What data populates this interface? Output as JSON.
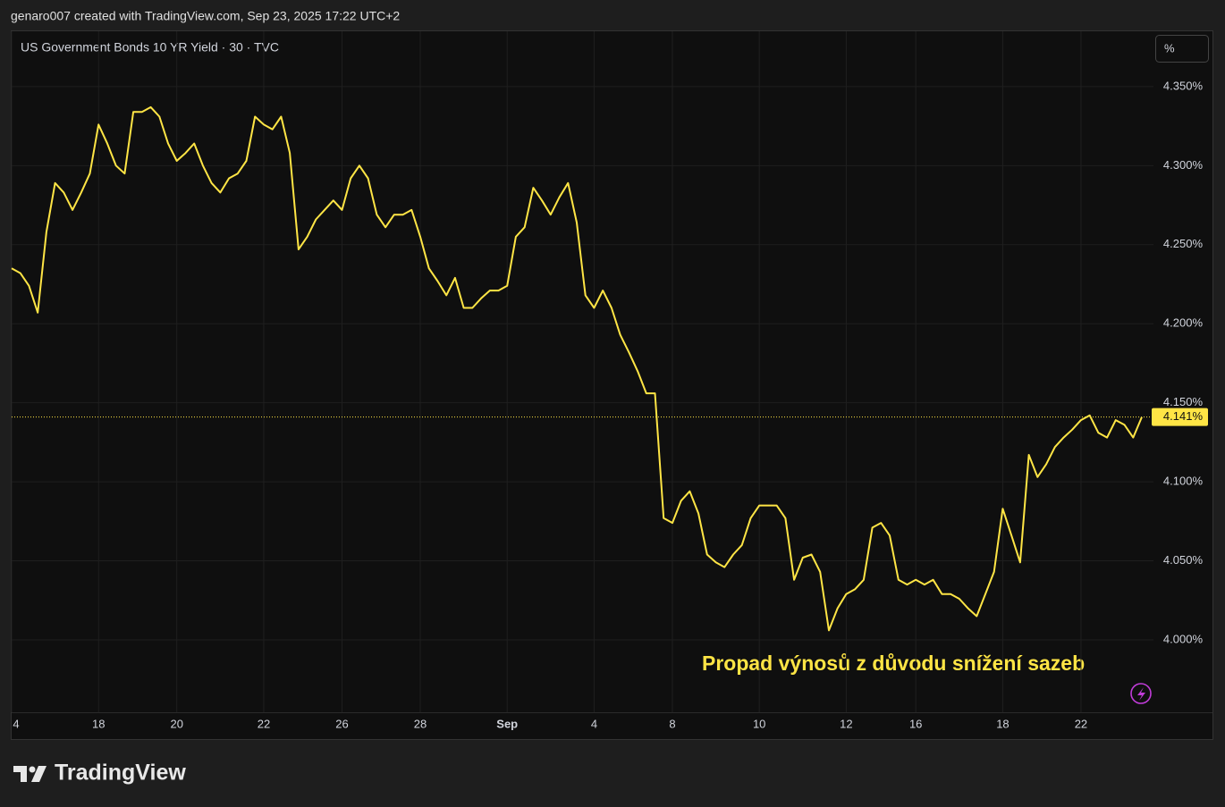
{
  "header": "genaro007 created with TradingView.com, Sep 23, 2025 17:22 UTC+2",
  "brand": "TradingView",
  "unit_button": "%",
  "chart_data": {
    "type": "line",
    "title": "US Government Bonds 10 YR Yield · 30 · TVC",
    "annotation": "Propad výnosů z důvodu snížení sazeb",
    "color": "#ffe545",
    "grid": true,
    "ylim": [
      3.9525,
      4.385
    ],
    "yticks": [
      {
        "value": 4.0,
        "label": "4.000%"
      },
      {
        "value": 4.05,
        "label": "4.050%"
      },
      {
        "value": 4.1,
        "label": "4.100%"
      },
      {
        "value": 4.15,
        "label": "4.150%"
      },
      {
        "value": 4.2,
        "label": "4.200%"
      },
      {
        "value": 4.25,
        "label": "4.250%"
      },
      {
        "value": 4.3,
        "label": "4.300%"
      },
      {
        "value": 4.35,
        "label": "4.350%"
      }
    ],
    "last_label": {
      "value": 4.141,
      "label": "4.141%"
    },
    "categories": [
      "4",
      null,
      null,
      null,
      null,
      null,
      null,
      null,
      null,
      null,
      "18",
      null,
      null,
      null,
      null,
      null,
      null,
      null,
      null,
      "20",
      null,
      null,
      null,
      null,
      null,
      null,
      null,
      null,
      null,
      "22",
      null,
      null,
      null,
      null,
      null,
      null,
      null,
      null,
      "26",
      null,
      null,
      null,
      null,
      null,
      null,
      null,
      null,
      "28",
      null,
      null,
      null,
      null,
      null,
      null,
      null,
      null,
      null,
      "Sep",
      null,
      null,
      null,
      null,
      null,
      null,
      null,
      null,
      null,
      "4",
      null,
      null,
      null,
      null,
      null,
      null,
      null,
      null,
      "8",
      null,
      null,
      null,
      null,
      null,
      null,
      null,
      null,
      null,
      "10",
      null,
      null,
      null,
      null,
      null,
      null,
      null,
      null,
      null,
      "12",
      null,
      null,
      null,
      null,
      null,
      null,
      null,
      "16",
      null,
      null,
      null,
      null,
      null,
      null,
      null,
      null,
      null,
      "18",
      null,
      null,
      null,
      null,
      null,
      null,
      null,
      null,
      "22",
      null,
      null,
      null,
      null,
      null,
      null,
      null
    ],
    "values": [
      4.235,
      4.232,
      4.224,
      4.207,
      4.258,
      4.289,
      4.283,
      4.272,
      4.283,
      4.295,
      4.326,
      4.314,
      4.3,
      4.295,
      4.334,
      4.334,
      4.337,
      4.331,
      4.314,
      4.303,
      4.308,
      4.314,
      4.3,
      4.289,
      4.283,
      4.292,
      4.295,
      4.303,
      4.331,
      4.326,
      4.323,
      4.331,
      4.308,
      4.247,
      4.255,
      4.266,
      4.272,
      4.278,
      4.272,
      4.292,
      4.3,
      4.292,
      4.269,
      4.261,
      4.269,
      4.269,
      4.272,
      4.255,
      4.235,
      4.227,
      4.218,
      4.229,
      4.21,
      4.21,
      4.216,
      4.221,
      4.221,
      4.224,
      4.255,
      4.261,
      4.286,
      4.278,
      4.269,
      4.28,
      4.289,
      4.264,
      4.218,
      4.21,
      4.221,
      4.21,
      4.193,
      4.182,
      4.17,
      4.156,
      4.156,
      4.077,
      4.074,
      4.088,
      4.094,
      4.08,
      4.054,
      4.049,
      4.046,
      4.054,
      4.06,
      4.077,
      4.085,
      4.085,
      4.085,
      4.077,
      4.038,
      4.052,
      4.054,
      4.043,
      4.006,
      4.02,
      4.029,
      4.032,
      4.038,
      4.071,
      4.074,
      4.066,
      4.038,
      4.035,
      4.038,
      4.035,
      4.038,
      4.029,
      4.029,
      4.026,
      4.02,
      4.015,
      4.029,
      4.043,
      4.083,
      4.066,
      4.049,
      4.117,
      4.103,
      4.111,
      4.122,
      4.128,
      4.133,
      4.139,
      4.142,
      4.131,
      4.128,
      4.139,
      4.136,
      4.128,
      4.141
    ]
  }
}
